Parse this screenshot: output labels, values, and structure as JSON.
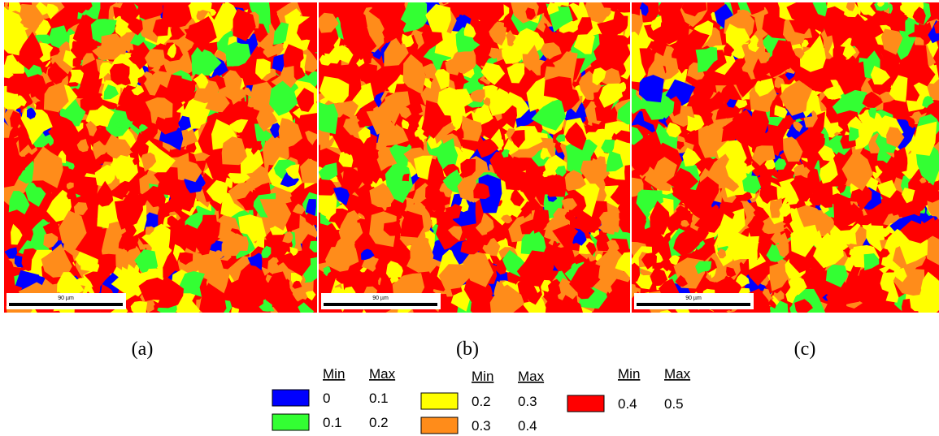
{
  "panels": [
    {
      "label": "(a)",
      "scale_bar": "90 µm"
    },
    {
      "label": "(b)",
      "scale_bar": "90 µm"
    },
    {
      "label": "(c)",
      "scale_bar": "90 µm"
    }
  ],
  "legend": {
    "groups": [
      {
        "headers": [
          "Min",
          "Max"
        ],
        "rows": [
          {
            "color": "#0000ff",
            "min": "0",
            "max": "0.1"
          },
          {
            "color": "#33ff33",
            "min": "0.1",
            "max": "0.2"
          }
        ]
      },
      {
        "headers": [
          "Min",
          "Max"
        ],
        "rows": [
          {
            "color": "#ffff00",
            "min": "0.2",
            "max": "0.3"
          },
          {
            "color": "#ff8c1a",
            "min": "0.3",
            "max": "0.4"
          }
        ]
      },
      {
        "headers": [
          "Min",
          "Max"
        ],
        "rows": [
          {
            "color": "#ff0000",
            "min": "0.4",
            "max": "0.5"
          }
        ]
      }
    ]
  }
}
